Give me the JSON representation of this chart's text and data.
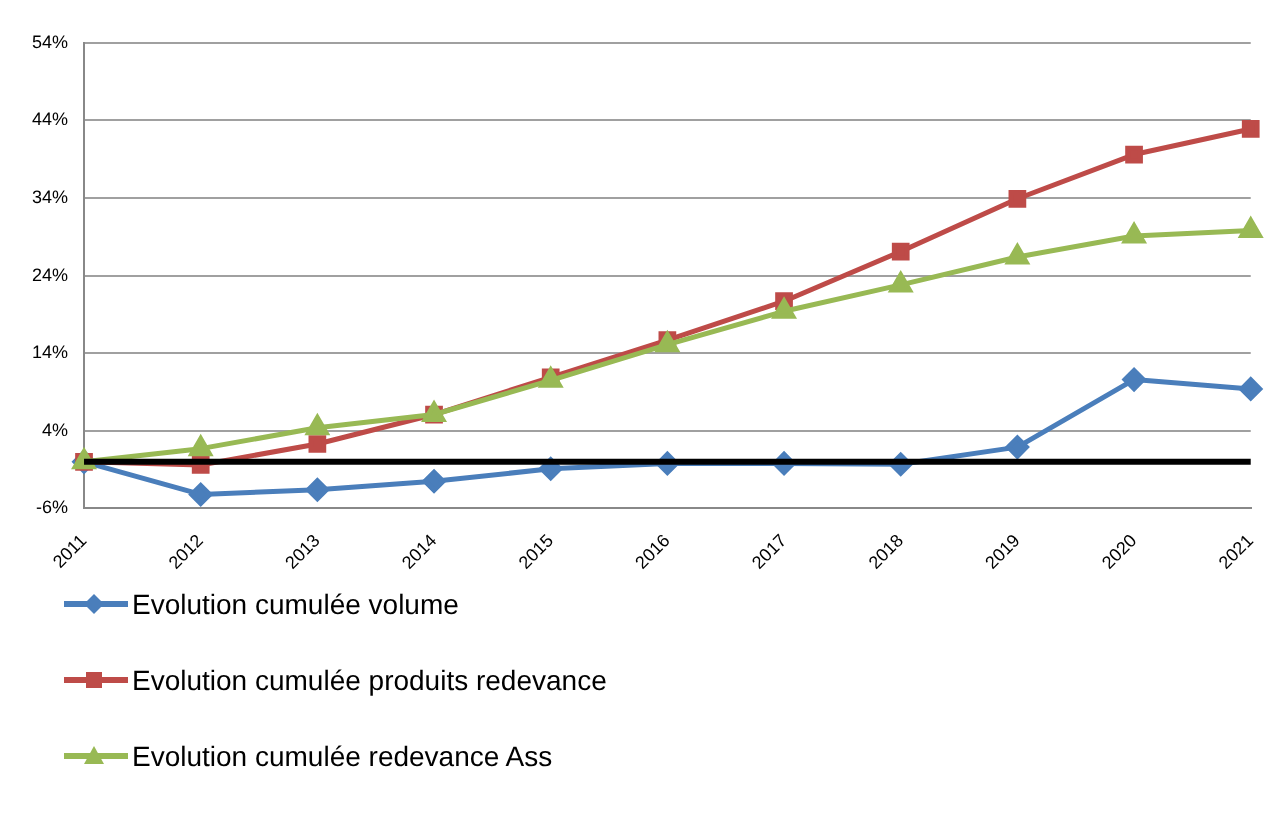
{
  "chart_data": {
    "type": "line",
    "categories": [
      "2011",
      "2012",
      "2013",
      "2014",
      "2015",
      "2016",
      "2017",
      "2018",
      "2019",
      "2020",
      "2021"
    ],
    "series": [
      {
        "name": "Evolution cumulée volume",
        "color": "#4a7ebb",
        "marker": "diamond",
        "values": [
          0,
          -4.2,
          -3.6,
          -2.5,
          -0.9,
          -0.2,
          -0.2,
          -0.3,
          1.9,
          10.6,
          9.4
        ]
      },
      {
        "name": "Evolution cumulée produits redevance",
        "color": "#be4b48",
        "marker": "square",
        "values": [
          0,
          -0.4,
          2.3,
          6.1,
          10.9,
          15.7,
          20.7,
          27.1,
          33.9,
          39.6,
          42.9
        ]
      },
      {
        "name": "Evolution cumulée redevance Ass",
        "color": "#98b954",
        "marker": "triangle",
        "values": [
          0,
          1.7,
          4.4,
          6.1,
          10.5,
          15.1,
          19.4,
          22.8,
          26.4,
          29.1,
          29.8
        ]
      }
    ],
    "ylim": [
      -6,
      54
    ],
    "yticks": [
      {
        "value": -6,
        "label": "-6%"
      },
      {
        "value": 4,
        "label": "4%"
      },
      {
        "value": 14,
        "label": "14%"
      },
      {
        "value": 24,
        "label": "24%"
      },
      {
        "value": 34,
        "label": "34%"
      },
      {
        "value": 44,
        "label": "44%"
      },
      {
        "value": 54,
        "label": "54%"
      }
    ],
    "ref_lines": [
      {
        "axis": "y",
        "value": 0,
        "color": "#000000"
      }
    ],
    "grid": "y",
    "legend": "bottom",
    "line_style": "solid"
  }
}
